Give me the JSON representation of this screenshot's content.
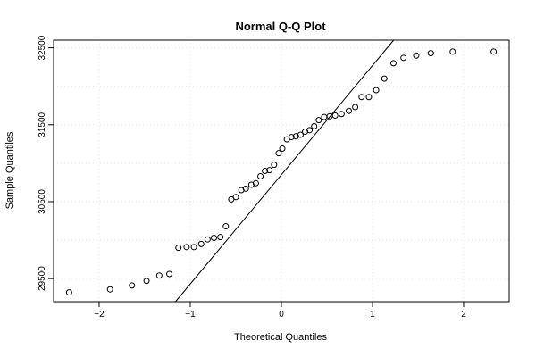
{
  "chart_data": {
    "type": "scatter",
    "title": "Normal Q-Q Plot",
    "xlabel": "Theoretical Quantiles",
    "ylabel": "Sample Quantiles",
    "xlim": [
      -2.5,
      2.5
    ],
    "ylim": [
      29200,
      32600
    ],
    "x_ticks": [
      -2,
      -1,
      0,
      1,
      2
    ],
    "x_tick_labels": [
      "−2",
      "−1",
      "0",
      "1",
      "2"
    ],
    "y_ticks": [
      29500,
      30500,
      31500,
      32500
    ],
    "y_tick_labels": [
      "29500",
      "30500",
      "31500",
      "32500"
    ],
    "grid": true,
    "reference_line": {
      "intercept": 30850,
      "slope": 1420
    },
    "points": [
      {
        "x": -2.33,
        "y": 29320
      },
      {
        "x": -1.88,
        "y": 29360
      },
      {
        "x": -1.64,
        "y": 29410
      },
      {
        "x": -1.48,
        "y": 29470
      },
      {
        "x": -1.34,
        "y": 29540
      },
      {
        "x": -1.23,
        "y": 29560
      },
      {
        "x": -1.13,
        "y": 29900
      },
      {
        "x": -1.04,
        "y": 29910
      },
      {
        "x": -0.96,
        "y": 29910
      },
      {
        "x": -0.88,
        "y": 29950
      },
      {
        "x": -0.81,
        "y": 30010
      },
      {
        "x": -0.74,
        "y": 30030
      },
      {
        "x": -0.67,
        "y": 30040
      },
      {
        "x": -0.61,
        "y": 30180
      },
      {
        "x": -0.55,
        "y": 30530
      },
      {
        "x": -0.5,
        "y": 30560
      },
      {
        "x": -0.44,
        "y": 30650
      },
      {
        "x": -0.39,
        "y": 30670
      },
      {
        "x": -0.33,
        "y": 30720
      },
      {
        "x": -0.28,
        "y": 30740
      },
      {
        "x": -0.23,
        "y": 30830
      },
      {
        "x": -0.18,
        "y": 30900
      },
      {
        "x": -0.13,
        "y": 30910
      },
      {
        "x": -0.08,
        "y": 30980
      },
      {
        "x": -0.03,
        "y": 31130
      },
      {
        "x": 0.01,
        "y": 31190
      },
      {
        "x": 0.06,
        "y": 31310
      },
      {
        "x": 0.11,
        "y": 31340
      },
      {
        "x": 0.16,
        "y": 31350
      },
      {
        "x": 0.21,
        "y": 31370
      },
      {
        "x": 0.26,
        "y": 31410
      },
      {
        "x": 0.31,
        "y": 31430
      },
      {
        "x": 0.36,
        "y": 31480
      },
      {
        "x": 0.41,
        "y": 31560
      },
      {
        "x": 0.47,
        "y": 31600
      },
      {
        "x": 0.53,
        "y": 31610
      },
      {
        "x": 0.59,
        "y": 31620
      },
      {
        "x": 0.66,
        "y": 31640
      },
      {
        "x": 0.74,
        "y": 31680
      },
      {
        "x": 0.81,
        "y": 31730
      },
      {
        "x": 0.88,
        "y": 31860
      },
      {
        "x": 0.96,
        "y": 31860
      },
      {
        "x": 1.04,
        "y": 31950
      },
      {
        "x": 1.13,
        "y": 32100
      },
      {
        "x": 1.23,
        "y": 32300
      },
      {
        "x": 1.34,
        "y": 32370
      },
      {
        "x": 1.48,
        "y": 32400
      },
      {
        "x": 1.64,
        "y": 32430
      },
      {
        "x": 1.88,
        "y": 32450
      },
      {
        "x": 2.33,
        "y": 32450
      }
    ]
  }
}
